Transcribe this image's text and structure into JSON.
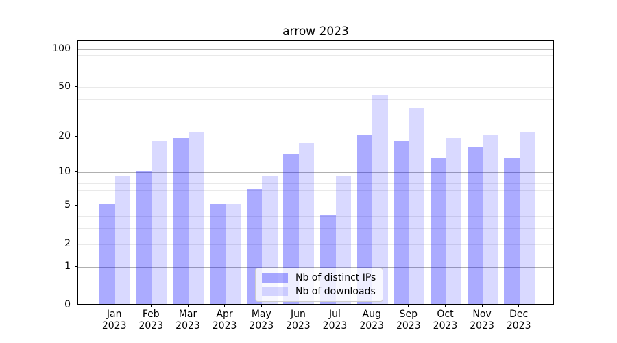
{
  "chart_data": {
    "type": "bar",
    "title": "arrow 2023",
    "categories": [
      "Jan",
      "Feb",
      "Mar",
      "Apr",
      "May",
      "Jun",
      "Jul",
      "Aug",
      "Sep",
      "Oct",
      "Nov",
      "Dec"
    ],
    "year": "2023",
    "series": [
      {
        "name": "Nb of distinct IPs",
        "color": "rgba(0,0,255,0.33)",
        "values": [
          5,
          10,
          19,
          5,
          7,
          14,
          4,
          20,
          18,
          13,
          16,
          13
        ]
      },
      {
        "name": "Nb of downloads",
        "color": "rgba(0,0,255,0.15)",
        "values": [
          9,
          18,
          21,
          5,
          9,
          17,
          9,
          42,
          33,
          19,
          20,
          21
        ]
      }
    ],
    "xlabel": "",
    "ylabel": "",
    "yscale": "log1p",
    "ylim": [
      0,
      116
    ],
    "yticks": [
      0,
      1,
      2,
      5,
      10,
      20,
      50,
      100
    ],
    "ytick_labels": [
      "0",
      "1",
      "2",
      "5",
      "10",
      "20",
      "50",
      "100"
    ],
    "major_gridlines": [
      1,
      10,
      100
    ],
    "minor_gridlines": [
      2,
      3,
      4,
      5,
      6,
      7,
      8,
      9,
      20,
      30,
      40,
      50,
      60,
      70,
      80,
      90
    ],
    "grid": true,
    "legend_position": "lower center",
    "colors": {
      "major_grid": "#b0b0b0",
      "minor_grid": "#e9e9e9",
      "spine": "#000000",
      "text": "#000000",
      "background": "#ffffff"
    }
  }
}
